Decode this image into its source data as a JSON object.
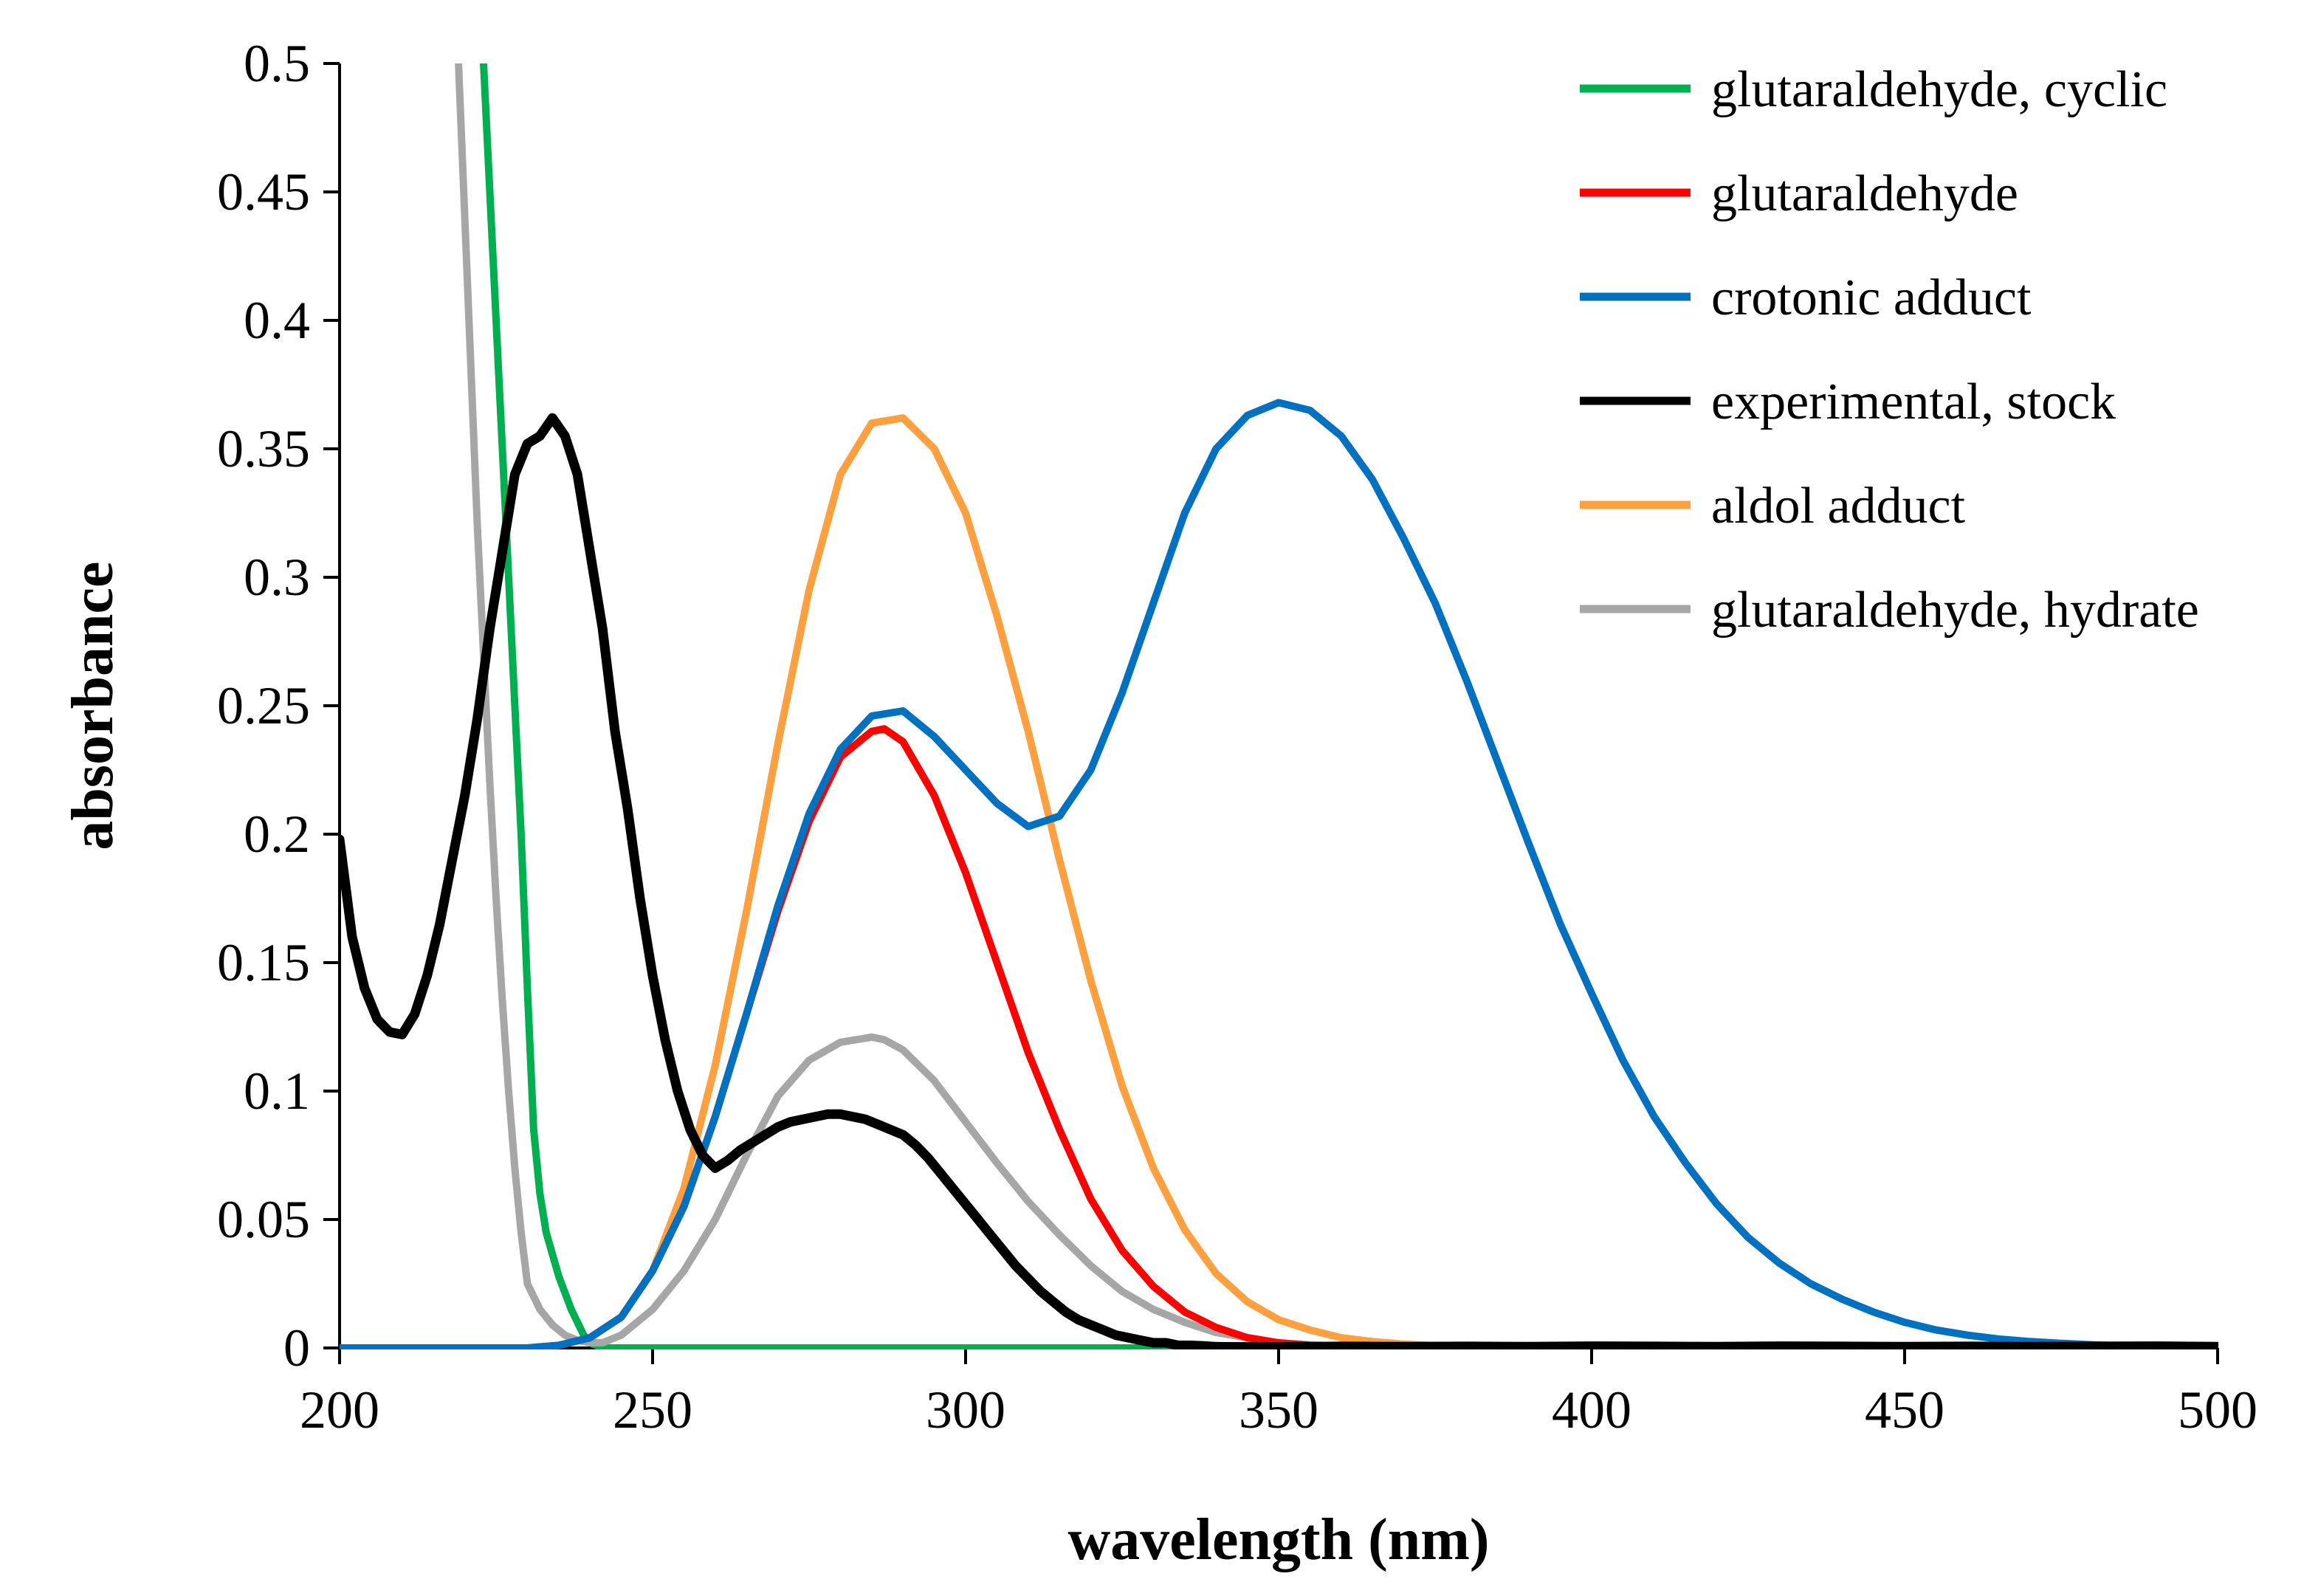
{
  "chart_data": {
    "type": "line",
    "title": "",
    "xlabel": "wavelength (nm)",
    "ylabel": "absorbance",
    "xlim": [
      200,
      500
    ],
    "ylim": [
      0,
      0.5
    ],
    "xticks": [
      "200",
      "250",
      "300",
      "350",
      "400",
      "450",
      "500"
    ],
    "yticks": [
      "0",
      "0.05",
      "0.1",
      "0.15",
      "0.2",
      "0.25",
      "0.3",
      "0.35",
      "0.4",
      "0.45",
      "0.5"
    ],
    "legend_position": "top-right",
    "series": [
      {
        "name": "glutaraldehyde, cyclic",
        "color": "#00b050",
        "x": [
          223,
          224,
          225,
          226,
          227,
          228,
          229,
          230,
          231,
          232,
          233,
          235,
          237,
          239,
          240,
          242,
          250,
          300,
          350,
          400
        ],
        "y": [
          0.5,
          0.45,
          0.4,
          0.35,
          0.3,
          0.25,
          0.2,
          0.14,
          0.085,
          0.06,
          0.045,
          0.028,
          0.015,
          0.005,
          0.002,
          0.0,
          0.0,
          0.0,
          0.0,
          0.0
        ]
      },
      {
        "name": "glutaraldehyde",
        "color": "#ff0000",
        "x": [
          200,
          230,
          235,
          240,
          245,
          250,
          255,
          260,
          265,
          270,
          275,
          280,
          285,
          287,
          290,
          295,
          300,
          305,
          310,
          315,
          320,
          325,
          330,
          335,
          340,
          345,
          350,
          355,
          360,
          365,
          370,
          380
        ],
        "y": [
          0,
          0.0,
          0.001,
          0.004,
          0.012,
          0.03,
          0.055,
          0.09,
          0.13,
          0.17,
          0.205,
          0.23,
          0.24,
          0.241,
          0.236,
          0.215,
          0.185,
          0.15,
          0.115,
          0.085,
          0.058,
          0.038,
          0.024,
          0.014,
          0.008,
          0.004,
          0.002,
          0.001,
          0.0005,
          0.0002,
          0.0,
          0.0
        ]
      },
      {
        "name": "crotonic adduct",
        "color": "#0070c0",
        "x": [
          200,
          230,
          235,
          240,
          245,
          250,
          255,
          260,
          265,
          270,
          275,
          280,
          285,
          290,
          295,
          300,
          305,
          310,
          315,
          320,
          325,
          330,
          335,
          340,
          345,
          350,
          355,
          360,
          365,
          370,
          375,
          380,
          385,
          390,
          395,
          400,
          405,
          410,
          415,
          420,
          425,
          430,
          435,
          440,
          445,
          450,
          455,
          460,
          465,
          470,
          475,
          480,
          485,
          490,
          500
        ],
        "y": [
          0,
          0.0,
          0.001,
          0.004,
          0.012,
          0.03,
          0.055,
          0.09,
          0.13,
          0.172,
          0.208,
          0.233,
          0.246,
          0.248,
          0.238,
          0.225,
          0.212,
          0.203,
          0.207,
          0.225,
          0.255,
          0.29,
          0.325,
          0.35,
          0.363,
          0.368,
          0.365,
          0.355,
          0.338,
          0.315,
          0.29,
          0.26,
          0.228,
          0.196,
          0.165,
          0.138,
          0.112,
          0.09,
          0.072,
          0.056,
          0.043,
          0.033,
          0.025,
          0.019,
          0.014,
          0.01,
          0.007,
          0.005,
          0.0035,
          0.0025,
          0.0018,
          0.0012,
          0.0008,
          0.0005,
          0.0002
        ]
      },
      {
        "name": "experimental, stock",
        "color": "#000000",
        "x": [
          200,
          202,
          204,
          206,
          208,
          210,
          212,
          214,
          216,
          218,
          220,
          222,
          224,
          226,
          228,
          230,
          232,
          234,
          236,
          238,
          240,
          242,
          244,
          246,
          248,
          250,
          252,
          254,
          256,
          258,
          260,
          262,
          264,
          266,
          268,
          270,
          272,
          274,
          276,
          278,
          280,
          282,
          284,
          286,
          288,
          290,
          292,
          294,
          296,
          298,
          300,
          302,
          304,
          306,
          308,
          310,
          312,
          314,
          316,
          318,
          320,
          322,
          324,
          326,
          328,
          330,
          332,
          334,
          336,
          338,
          340,
          345,
          350,
          360,
          370,
          380,
          390,
          400,
          410,
          420,
          430,
          440,
          450,
          460,
          470,
          480,
          490,
          500
        ],
        "y": [
          0.198,
          0.16,
          0.14,
          0.128,
          0.123,
          0.122,
          0.13,
          0.145,
          0.165,
          0.19,
          0.215,
          0.245,
          0.28,
          0.31,
          0.34,
          0.352,
          0.355,
          0.362,
          0.355,
          0.34,
          0.31,
          0.28,
          0.24,
          0.21,
          0.175,
          0.145,
          0.12,
          0.1,
          0.085,
          0.075,
          0.07,
          0.073,
          0.077,
          0.08,
          0.083,
          0.086,
          0.088,
          0.089,
          0.09,
          0.091,
          0.091,
          0.09,
          0.089,
          0.087,
          0.085,
          0.083,
          0.079,
          0.074,
          0.068,
          0.062,
          0.056,
          0.05,
          0.044,
          0.038,
          0.032,
          0.027,
          0.022,
          0.018,
          0.014,
          0.011,
          0.009,
          0.007,
          0.005,
          0.004,
          0.003,
          0.002,
          0.002,
          0.001,
          0.001,
          0.0008,
          0.0005,
          0.0004,
          0.0004,
          0.0006,
          0.0005,
          0.0006,
          0.0005,
          0.0007,
          0.0006,
          0.0005,
          0.0007,
          0.0006,
          0.0005,
          0.0006,
          0.0005,
          0.0006,
          0.0007,
          0.0005
        ]
      },
      {
        "name": "aldol adduct",
        "color": "#ffa040",
        "x": [
          200,
          230,
          235,
          240,
          245,
          250,
          255,
          260,
          265,
          270,
          275,
          280,
          285,
          290,
          295,
          300,
          305,
          310,
          315,
          320,
          325,
          330,
          335,
          340,
          345,
          350,
          355,
          360,
          365,
          370,
          375,
          380,
          385,
          390,
          400,
          410,
          420,
          430,
          440
        ],
        "y": [
          0,
          0.0,
          0.001,
          0.004,
          0.012,
          0.03,
          0.062,
          0.11,
          0.17,
          0.235,
          0.295,
          0.34,
          0.36,
          0.362,
          0.35,
          0.325,
          0.285,
          0.24,
          0.19,
          0.143,
          0.102,
          0.07,
          0.046,
          0.029,
          0.018,
          0.011,
          0.007,
          0.004,
          0.0025,
          0.0015,
          0.0009,
          0.0005,
          0.0003,
          0.0002,
          0.0001,
          0.0,
          0.0,
          0.0,
          0.0
        ]
      },
      {
        "name": "glutaraldehyde, hydrate",
        "color": "#a6a6a6",
        "x": [
          219,
          220,
          221,
          222,
          223,
          224,
          225,
          226,
          227,
          228,
          229,
          230,
          232,
          234,
          236,
          238,
          240,
          242,
          245,
          250,
          255,
          260,
          265,
          270,
          275,
          280,
          285,
          287,
          290,
          295,
          300,
          305,
          310,
          315,
          320,
          325,
          330,
          335,
          340,
          345,
          350,
          355,
          360,
          370,
          380,
          390
        ],
        "y": [
          0.5,
          0.44,
          0.38,
          0.32,
          0.27,
          0.22,
          0.175,
          0.135,
          0.1,
          0.07,
          0.045,
          0.025,
          0.015,
          0.009,
          0.005,
          0.003,
          0.002,
          0.002,
          0.005,
          0.015,
          0.03,
          0.05,
          0.075,
          0.098,
          0.112,
          0.119,
          0.121,
          0.12,
          0.116,
          0.104,
          0.088,
          0.072,
          0.057,
          0.044,
          0.032,
          0.022,
          0.015,
          0.01,
          0.006,
          0.004,
          0.002,
          0.0012,
          0.0007,
          0.0002,
          0.0,
          0.0
        ]
      }
    ]
  }
}
